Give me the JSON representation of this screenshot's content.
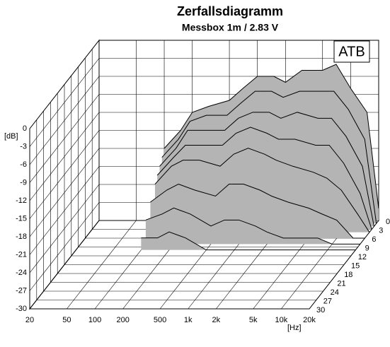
{
  "chart_data": {
    "type": "waterfall",
    "title": "Zerfallsdiagramm",
    "subtitle": "Messbox 1m / 2.83 V",
    "annotation": "ATB",
    "x_label": "[Hz]",
    "y_label": "[dB]",
    "log_x": true,
    "grid": true,
    "color": "#b4b4b4",
    "x": [
      100,
      150,
      200,
      300,
      500,
      700,
      1000,
      1500,
      2000,
      3000,
      5000,
      7000,
      10000,
      15000,
      20000
    ],
    "series": [
      {
        "z": 0,
        "values": [
          -18,
          -15,
          -12,
          -11,
          -10,
          -8,
          -6,
          -6,
          -7,
          -5,
          -5,
          -4,
          -8,
          -12,
          -28
        ]
      },
      {
        "z": 1,
        "values": [
          -19,
          -16,
          -13,
          -12,
          -12,
          -10,
          -8,
          -8,
          -9,
          -8,
          -8,
          -8,
          -11,
          -16,
          -30
        ]
      },
      {
        "z": 2,
        "values": [
          -20,
          -17,
          -14,
          -14,
          -14,
          -12,
          -11,
          -11,
          -12,
          -11,
          -12,
          -12,
          -15,
          -20,
          -30
        ]
      },
      {
        "z": 3,
        "values": [
          -21,
          -18,
          -16,
          -16,
          -16,
          -14,
          -13,
          -14,
          -15,
          -15,
          -16,
          -16,
          -19,
          -24,
          -30
        ]
      },
      {
        "z": 4,
        "values": [
          -22,
          -19,
          -18,
          -18,
          -19,
          -17,
          -16,
          -17,
          -18,
          -19,
          -20,
          -21,
          -23,
          -27,
          -30
        ]
      },
      {
        "z": 6,
        "values": [
          -24,
          -22,
          -21,
          -22,
          -23,
          -21,
          -21,
          -22,
          -23,
          -24,
          -25,
          -26,
          -27,
          -30,
          -30
        ]
      },
      {
        "z": 8,
        "values": [
          -26,
          -25,
          -24,
          -25,
          -27,
          -26,
          -26,
          -27,
          -28,
          -29,
          -29,
          -29,
          -30,
          -30,
          -30
        ]
      },
      {
        "z": 10,
        "values": [
          -28,
          -28,
          -27,
          -28,
          -30,
          -30,
          -30,
          -30,
          -30,
          -30,
          -30,
          -30,
          -30,
          -30,
          -30
        ]
      }
    ],
    "xlim": [
      20,
      20000
    ],
    "xticks": [
      20,
      50,
      100,
      200,
      500,
      {
        "value": 1000,
        "label": "1k"
      },
      {
        "value": 2000,
        "label": "2k"
      },
      {
        "value": 5000,
        "label": "5k"
      },
      {
        "value": 10000,
        "label": "10k"
      },
      {
        "value": 20000,
        "label": "20k"
      }
    ],
    "ylim": [
      -30,
      0
    ],
    "yticks": [
      0,
      -3,
      -6,
      -9,
      -12,
      -15,
      -18,
      -21,
      -24,
      -27,
      -30
    ],
    "zlim": [
      0,
      30
    ],
    "zticks": [
      0,
      3,
      6,
      9,
      12,
      15,
      18,
      21,
      24,
      27,
      30
    ]
  }
}
